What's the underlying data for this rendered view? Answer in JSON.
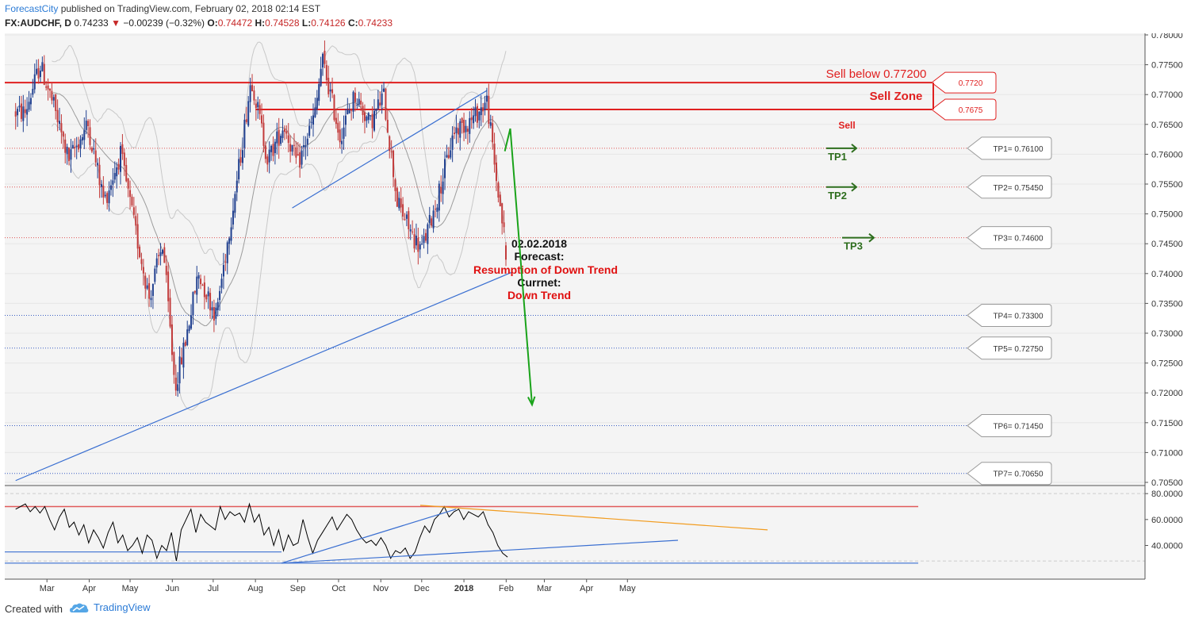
{
  "header": {
    "publisher": "ForecastCity",
    "published_text": "published on TradingView.com, February 02, 2018 02:14 EST",
    "symbol": "FX:AUDCHF, D",
    "last": "0.74233",
    "change": "−0.00239 (−0.32%)",
    "o_label": "O:",
    "o": "0.74472",
    "h_label": "H:",
    "h": "0.74528",
    "l_label": "L:",
    "l": "0.74126",
    "c_label": "C:",
    "c": "0.74233"
  },
  "footer": {
    "created_with": "Created with",
    "brand": "TradingView"
  },
  "colors": {
    "up": "#1f3f8f",
    "down": "#c23b3b",
    "resistance": "#e02020",
    "trendline": "#3a6fd1",
    "target_arrow": "#1aa31a",
    "tp_arrow": "#2e6e1e",
    "rsi_line": "#000000",
    "rsi_trend_orange": "#f29b1d"
  },
  "chart_data": [
    {
      "type": "candlestick",
      "title": "FX:AUDCHF, D",
      "price_axis": {
        "min": 0.705,
        "max": 0.78,
        "ticks": [
          "0.78000",
          "0.77500",
          "0.77000",
          "0.76500",
          "0.76000",
          "0.75500",
          "0.75000",
          "0.74500",
          "0.74000",
          "0.73500",
          "0.73000",
          "0.72500",
          "0.72000",
          "0.71500",
          "0.71000",
          "0.70500"
        ]
      },
      "time_axis": [
        "Mar",
        "Apr",
        "May",
        "Jun",
        "Jul",
        "Aug",
        "Sep",
        "Oct",
        "Nov",
        "Dec",
        "2018",
        "Feb",
        "Mar",
        "Apr",
        "May"
      ],
      "path": [
        {
          "d": "2017-02-13",
          "p": 0.767
        },
        {
          "d": "2017-02-24",
          "p": 0.775
        },
        {
          "d": "2017-03-06",
          "p": 0.768
        },
        {
          "d": "2017-03-17",
          "p": 0.759
        },
        {
          "d": "2017-03-31",
          "p": 0.765
        },
        {
          "d": "2017-04-12",
          "p": 0.752
        },
        {
          "d": "2017-04-24",
          "p": 0.76
        },
        {
          "d": "2017-05-05",
          "p": 0.747
        },
        {
          "d": "2017-05-15",
          "p": 0.736
        },
        {
          "d": "2017-05-25",
          "p": 0.745
        },
        {
          "d": "2017-06-03",
          "p": 0.721
        },
        {
          "d": "2017-06-10",
          "p": 0.728
        },
        {
          "d": "2017-06-20",
          "p": 0.74
        },
        {
          "d": "2017-07-03",
          "p": 0.733
        },
        {
          "d": "2017-07-20",
          "p": 0.758
        },
        {
          "d": "2017-07-29",
          "p": 0.773
        },
        {
          "d": "2017-08-10",
          "p": 0.759
        },
        {
          "d": "2017-08-22",
          "p": 0.765
        },
        {
          "d": "2017-09-01",
          "p": 0.758
        },
        {
          "d": "2017-09-14",
          "p": 0.767
        },
        {
          "d": "2017-09-19",
          "p": 0.776
        },
        {
          "d": "2017-10-02",
          "p": 0.763
        },
        {
          "d": "2017-10-13",
          "p": 0.77
        },
        {
          "d": "2017-10-24",
          "p": 0.765
        },
        {
          "d": "2017-11-03",
          "p": 0.77
        },
        {
          "d": "2017-11-13",
          "p": 0.752
        },
        {
          "d": "2017-11-25",
          "p": 0.746
        },
        {
          "d": "2017-12-01",
          "p": 0.744
        },
        {
          "d": "2017-12-13",
          "p": 0.753
        },
        {
          "d": "2017-12-25",
          "p": 0.764
        },
        {
          "d": "2018-01-08",
          "p": 0.766
        },
        {
          "d": "2018-01-18",
          "p": 0.769
        },
        {
          "d": "2018-01-24",
          "p": 0.757
        },
        {
          "d": "2018-01-29",
          "p": 0.749
        },
        {
          "d": "2018-02-02",
          "p": 0.7423
        }
      ],
      "horizontal_levels": [
        {
          "label": "0.7720",
          "price": 0.772,
          "style": "solid"
        },
        {
          "label": "0.7675",
          "price": 0.7675,
          "style": "solid"
        },
        {
          "label": "TP1= 0.76100",
          "price": 0.761,
          "style": "dotted"
        },
        {
          "label": "TP2= 0.75450",
          "price": 0.7545,
          "style": "dotted"
        },
        {
          "label": "TP3= 0.74600",
          "price": 0.746,
          "style": "dotted"
        },
        {
          "label": "TP4= 0.73300",
          "price": 0.733,
          "style": "dotted"
        },
        {
          "label": "TP5= 0.72750",
          "price": 0.7275,
          "style": "dotted"
        },
        {
          "label": "TP6= 0.71450",
          "price": 0.7145,
          "style": "dotted"
        },
        {
          "label": "TP7= 0.70650",
          "price": 0.7065,
          "style": "dotted"
        }
      ],
      "trendlines": [
        {
          "from": {
            "d": "2017-02-06",
            "p": 0.7053
          },
          "to": {
            "d": "2018-02-05",
            "p": 0.7402
          }
        },
        {
          "from": {
            "d": "2017-08-28",
            "p": 0.751
          },
          "to": {
            "d": "2018-01-18",
            "p": 0.7707
          }
        }
      ],
      "forecast_arrow": [
        {
          "d": "2018-01-31",
          "p": 0.7605
        },
        {
          "d": "2018-02-04",
          "p": 0.7643
        },
        {
          "d": "2018-02-20",
          "p": 0.718
        }
      ],
      "annotations": {
        "sell_below": "Sell below 0.77200",
        "sell_zone": "Sell Zone",
        "sell": "Sell",
        "tp1": "TP1",
        "tp2": "TP2",
        "tp3": "TP3",
        "date": "02.02.2018",
        "forecast_label": "Forecast:",
        "forecast_value": "Resumption of Down Trend",
        "current_label": "Currnet:",
        "current_value": "Down Trend"
      }
    },
    {
      "type": "line",
      "series": [
        {
          "values": [
            68,
            70,
            72,
            66,
            70,
            65,
            70,
            60,
            52,
            62,
            68,
            54,
            58,
            48,
            56,
            42,
            52,
            46,
            38,
            50,
            58,
            42,
            48,
            36,
            40,
            46,
            34,
            48,
            44,
            30,
            40,
            36,
            50,
            28,
            52,
            60,
            68,
            50,
            64,
            58,
            55,
            52,
            70,
            60,
            66,
            63,
            65,
            58,
            72,
            58,
            64,
            48,
            54,
            40,
            52,
            36,
            48,
            40,
            42,
            60,
            46,
            34,
            44,
            50,
            56,
            62,
            52,
            58,
            64,
            60,
            52,
            46,
            42,
            44,
            40,
            46,
            40,
            30,
            36,
            34,
            38,
            30,
            35,
            46,
            55,
            50,
            60,
            64,
            70,
            62,
            66,
            68,
            60,
            66,
            64,
            62,
            66,
            56,
            50,
            40,
            34,
            31
          ]
        }
      ],
      "y_axis": {
        "min": 25,
        "max": 85,
        "ticks": [
          "80.0000",
          "60.0000",
          "40.0000"
        ]
      },
      "levels": [
        70,
        30
      ]
    }
  ]
}
